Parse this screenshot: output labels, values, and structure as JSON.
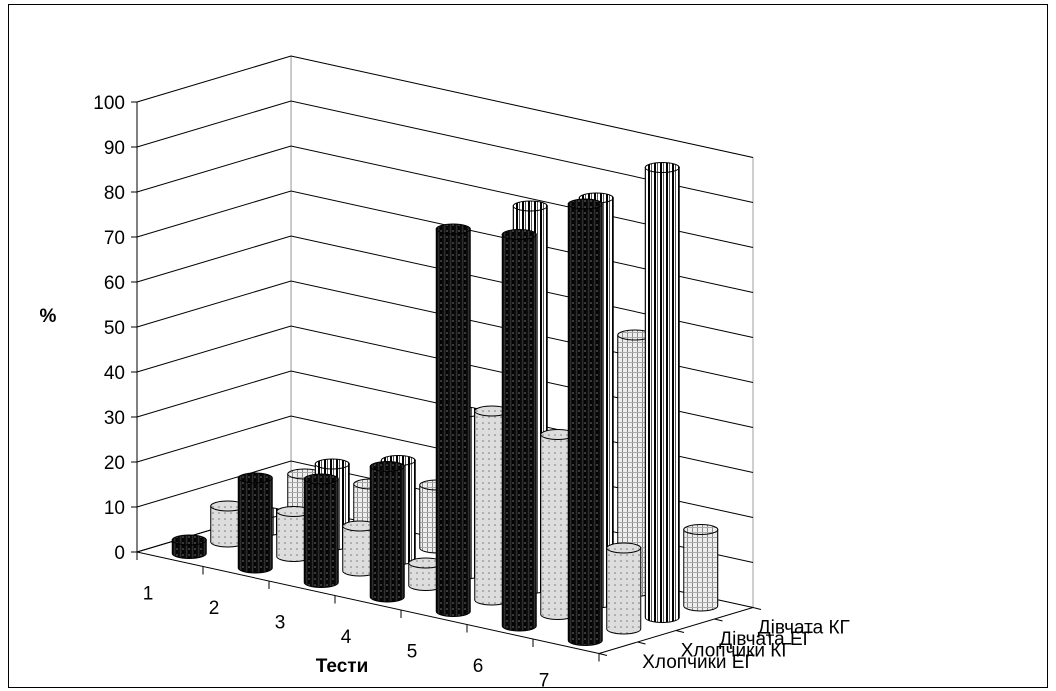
{
  "chart_data": {
    "type": "bar",
    "style": "3d-cylinder",
    "ylabel": "%",
    "xlabel": "Тести",
    "ylim": [
      0,
      100
    ],
    "yticks": [
      0,
      10,
      20,
      30,
      40,
      50,
      60,
      70,
      80,
      90,
      100
    ],
    "categories": [
      "1",
      "2",
      "3",
      "4",
      "5",
      "6",
      "7"
    ],
    "series": [
      {
        "name": "Хлопчики ЕГ",
        "values": [
          3,
          20,
          23,
          29,
          85,
          87,
          97
        ]
      },
      {
        "name": "Хлопчики КГ",
        "values": [
          8,
          10,
          10,
          5,
          42,
          40,
          18
        ]
      },
      {
        "name": "Дівчата ЕГ",
        "values": [
          4,
          18,
          22,
          36,
          85,
          90,
          100
        ]
      },
      {
        "name": "Дівчата КГ",
        "values": [
          10,
          11,
          14,
          14,
          15,
          57,
          17
        ]
      }
    ],
    "colors": {
      "Хлопчики ЕГ": "#1a1a1a",
      "Хлопчики КГ": "#e2e2e2",
      "Дівчата ЕГ": "#9a9a9a",
      "Дівчата КГ": "#cfcfcf"
    },
    "grid": true
  }
}
